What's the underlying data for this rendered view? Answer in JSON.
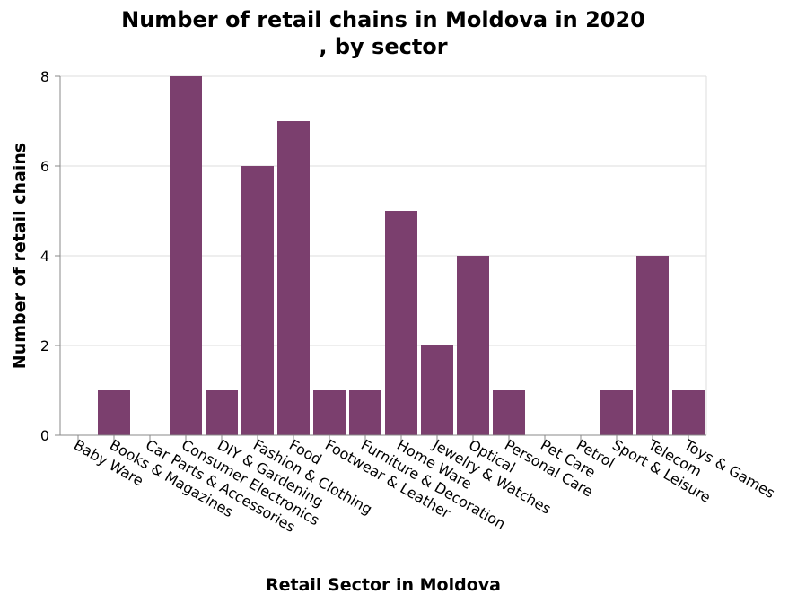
{
  "chart_data": {
    "type": "bar",
    "title_lines": [
      "Number of retail chains in Moldova in 2020",
      ", by sector"
    ],
    "xlabel": "Retail Sector in Moldova",
    "ylabel": "Number of retail chains",
    "categories": [
      "Baby Ware",
      "Books & Magazines",
      "Car Parts & Accessories",
      "Consumer Electronics",
      "DIY & Gardening",
      "Fashion & Clothing",
      "Food",
      "Footwear & Leather",
      "Furniture & Decoration",
      "Home Ware",
      "Jewelry & Watches",
      "Optical",
      "Personal Care",
      "Pet Care",
      "Petrol",
      "Sport & Leisure",
      "Telecom",
      "Toys & Games"
    ],
    "values": [
      0,
      1,
      0,
      8,
      1,
      6,
      7,
      1,
      1,
      5,
      2,
      4,
      1,
      0,
      0,
      1,
      4,
      1
    ],
    "ylim": [
      0,
      8
    ],
    "yticks": [
      0,
      2,
      4,
      6,
      8
    ],
    "bar_color": "#7b3f6e",
    "grid": true,
    "legend": "none"
  }
}
